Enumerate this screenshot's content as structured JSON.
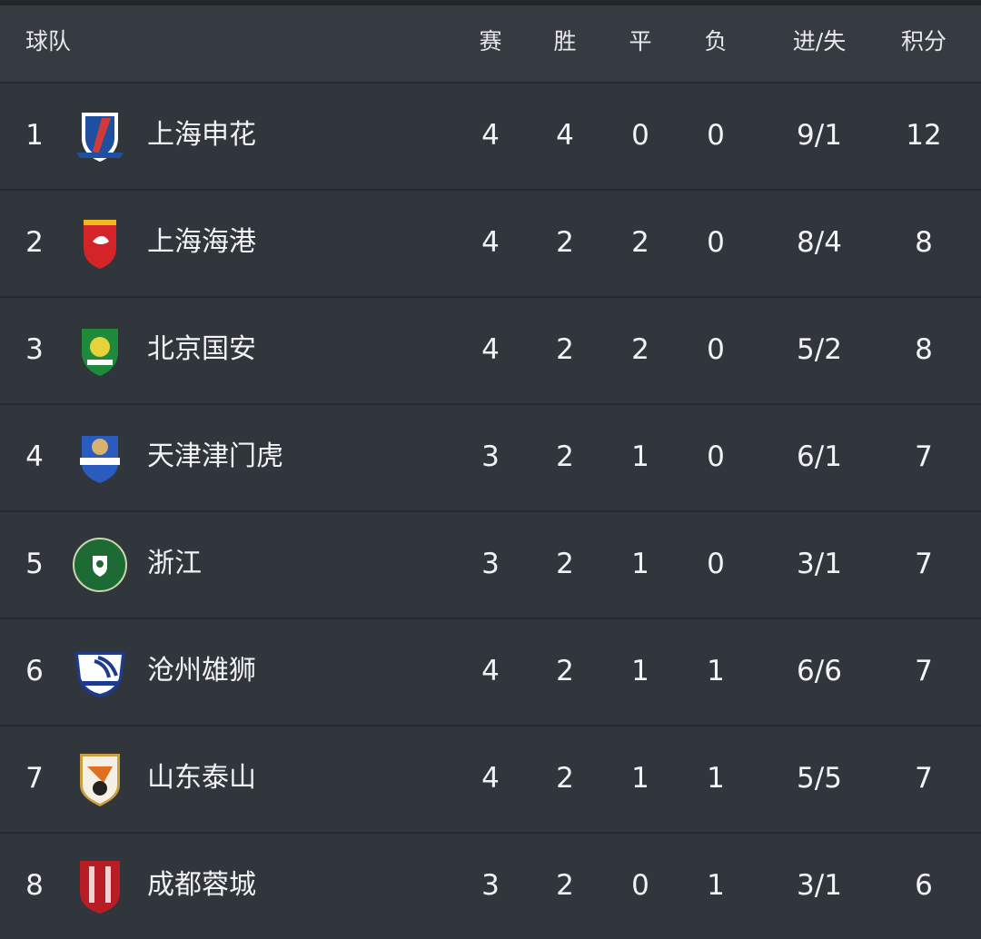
{
  "header": {
    "team": "球队",
    "played": "赛",
    "won": "胜",
    "drawn": "平",
    "lost": "负",
    "goals": "进/失",
    "points": "积分"
  },
  "rows": [
    {
      "rank": "1",
      "name": "上海申花",
      "played": "4",
      "won": "4",
      "drawn": "0",
      "lost": "0",
      "goals": "9/1",
      "points": "12",
      "logo": "shenhua-crest-icon",
      "colors": [
        "#1f4fa0",
        "#d23a3a"
      ]
    },
    {
      "rank": "2",
      "name": "上海海港",
      "played": "4",
      "won": "2",
      "drawn": "2",
      "lost": "0",
      "goals": "8/4",
      "points": "8",
      "logo": "haigang-crest-icon",
      "colors": [
        "#d4242a",
        "#f2b820"
      ]
    },
    {
      "rank": "3",
      "name": "北京国安",
      "played": "4",
      "won": "2",
      "drawn": "2",
      "lost": "0",
      "goals": "5/2",
      "points": "8",
      "logo": "guoan-crest-icon",
      "colors": [
        "#1f8a3a",
        "#e6d23a"
      ]
    },
    {
      "rank": "4",
      "name": "天津津门虎",
      "played": "3",
      "won": "2",
      "drawn": "1",
      "lost": "0",
      "goals": "6/1",
      "points": "7",
      "logo": "jinmen-tiger-crest-icon",
      "colors": [
        "#2a5cc0",
        "#d8b070"
      ]
    },
    {
      "rank": "5",
      "name": "浙江",
      "played": "3",
      "won": "2",
      "drawn": "1",
      "lost": "0",
      "goals": "3/1",
      "points": "7",
      "logo": "zhejiang-crest-icon",
      "colors": [
        "#1e6a34",
        "#c9d6b0"
      ]
    },
    {
      "rank": "6",
      "name": "沧州雄狮",
      "played": "4",
      "won": "2",
      "drawn": "1",
      "lost": "1",
      "goals": "6/6",
      "points": "7",
      "logo": "cangzhou-crest-icon",
      "colors": [
        "#ffffff",
        "#1e3a8a"
      ]
    },
    {
      "rank": "7",
      "name": "山东泰山",
      "played": "4",
      "won": "2",
      "drawn": "1",
      "lost": "1",
      "goals": "5/5",
      "points": "7",
      "logo": "taishan-crest-icon",
      "colors": [
        "#f4f0e6",
        "#e07020"
      ]
    },
    {
      "rank": "8",
      "name": "成都蓉城",
      "played": "3",
      "won": "2",
      "drawn": "0",
      "lost": "1",
      "goals": "3/1",
      "points": "6",
      "logo": "chengdu-crest-icon",
      "colors": [
        "#b81c24",
        "#ffffff"
      ]
    }
  ]
}
